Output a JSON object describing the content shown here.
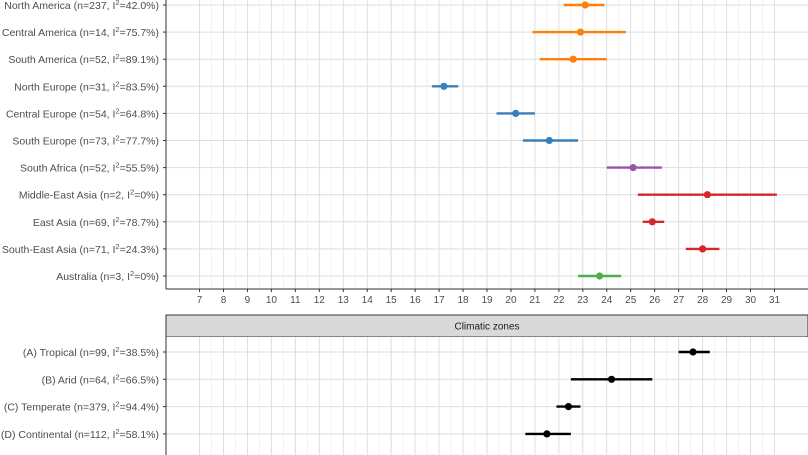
{
  "chart_data": [
    {
      "type": "forest",
      "title": "",
      "xlabel": "",
      "ylabel": "",
      "xlim": [
        5.6,
        32.4
      ],
      "x_ticks": [
        7,
        8,
        9,
        10,
        11,
        12,
        13,
        14,
        15,
        16,
        17,
        18,
        19,
        20,
        21,
        22,
        23,
        24,
        25,
        26,
        27,
        28,
        29,
        30,
        31
      ],
      "grid": true,
      "rows": [
        {
          "label": "North America (n=237, I",
          "sup": "2",
          "tail": "=42.0%)",
          "estimate": 23.1,
          "lower": 22.2,
          "upper": 23.9,
          "color": "#ff7f0e"
        },
        {
          "label": "Central America (n=14, I",
          "sup": "2",
          "tail": "=75.7%)",
          "estimate": 22.9,
          "lower": 20.9,
          "upper": 24.8,
          "color": "#ff7f0e"
        },
        {
          "label": "South America (n=52, I",
          "sup": "2",
          "tail": "=89.1%)",
          "estimate": 22.6,
          "lower": 21.2,
          "upper": 24.0,
          "color": "#ff7f0e"
        },
        {
          "label": "North Europe (n=31, I",
          "sup": "2",
          "tail": "=83.5%)",
          "estimate": 17.2,
          "lower": 16.7,
          "upper": 17.8,
          "color": "#3a7fb8"
        },
        {
          "label": "Central Europe (n=54, I",
          "sup": "2",
          "tail": "=64.8%)",
          "estimate": 20.2,
          "lower": 19.4,
          "upper": 21.0,
          "color": "#3a7fb8"
        },
        {
          "label": "South Europe (n=73, I",
          "sup": "2",
          "tail": "=77.7%)",
          "estimate": 21.6,
          "lower": 20.5,
          "upper": 22.8,
          "color": "#3a7fb8"
        },
        {
          "label": "South Africa (n=52, I",
          "sup": "2",
          "tail": "=55.5%)",
          "estimate": 25.1,
          "lower": 24.0,
          "upper": 26.3,
          "color": "#9b51b0"
        },
        {
          "label": "Middle-East Asia (n=2, I",
          "sup": "2",
          "tail": "=0%)",
          "estimate": 28.2,
          "lower": 25.3,
          "upper": 31.1,
          "color": "#d62728"
        },
        {
          "label": "East Asia (n=69, I",
          "sup": "2",
          "tail": "=78.7%)",
          "estimate": 25.9,
          "lower": 25.5,
          "upper": 26.4,
          "color": "#d62728"
        },
        {
          "label": "South-East Asia (n=71, I",
          "sup": "2",
          "tail": "=24.3%)",
          "estimate": 28.0,
          "lower": 27.3,
          "upper": 28.7,
          "color": "#d62728"
        },
        {
          "label": "Australia (n=3, I",
          "sup": "2",
          "tail": "=0%)",
          "estimate": 23.7,
          "lower": 22.8,
          "upper": 24.6,
          "color": "#4daf4a"
        }
      ]
    },
    {
      "type": "forest",
      "title": "Climatic zones",
      "xlabel": "",
      "ylabel": "",
      "xlim": [
        5.6,
        32.4
      ],
      "grid": true,
      "rows": [
        {
          "label": "(A) Tropical (n=99, I",
          "sup": "2",
          "tail": "=38.5%)",
          "estimate": 27.6,
          "lower": 27.0,
          "upper": 28.3,
          "color": "#000000"
        },
        {
          "label": "(B) Arid (n=64, I",
          "sup": "2",
          "tail": "=66.5%)",
          "estimate": 24.2,
          "lower": 22.5,
          "upper": 25.9,
          "color": "#000000"
        },
        {
          "label": "(C) Temperate (n=379, I",
          "sup": "2",
          "tail": "=94.4%)",
          "estimate": 22.4,
          "lower": 21.9,
          "upper": 22.9,
          "color": "#000000"
        },
        {
          "label": "(D) Continental (n=112, I",
          "sup": "2",
          "tail": "=58.1%)",
          "estimate": 21.5,
          "lower": 20.6,
          "upper": 22.5,
          "color": "#000000"
        }
      ]
    }
  ]
}
